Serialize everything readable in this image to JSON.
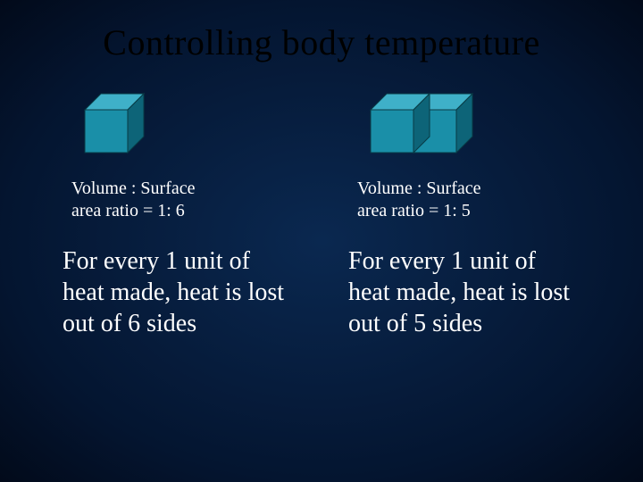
{
  "title": "Controlling body temperature",
  "colors": {
    "title_color": "#000000",
    "text_color": "#ffffff",
    "cube_front": "#1a8fa8",
    "cube_top": "#3fb0c8",
    "cube_side": "#0d6478",
    "cube_edge": "#083a45",
    "bg_center": "#0a2850",
    "bg_edge": "#020a1a"
  },
  "left": {
    "cubes": 1,
    "ratio_line1": "Volume : Surface",
    "ratio_line2": "area ratio = 1: 6",
    "body": "For every 1 unit of heat made, heat is lost out of 6 sides"
  },
  "right": {
    "cubes": 2,
    "ratio_line1": "Volume : Surface",
    "ratio_line2": "area ratio = 1: 5",
    "body": "For every 1 unit of heat made, heat is lost out of 5 sides"
  },
  "cube_style": {
    "size": 48,
    "depth": 18
  }
}
